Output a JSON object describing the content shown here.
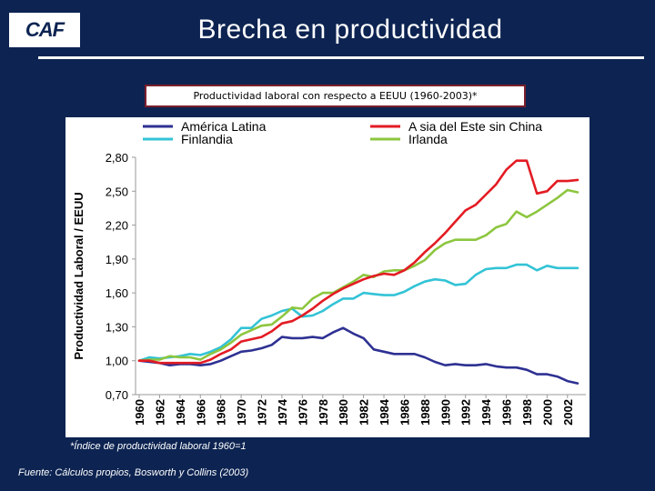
{
  "header": {
    "logo_text": "CAF",
    "title": "Brecha en productividad"
  },
  "footnote": "*Índice de productividad laboral 1960=1",
  "source": "Fuente: Cálculos propios, Bosworth y Collins (2003)",
  "colors": {
    "background": "#0d2452",
    "america_latina": "#2e3192",
    "finlandia": "#33c3d6",
    "asia_este": "#e31b23",
    "irlanda": "#8dc63f"
  },
  "chart_data": {
    "type": "line",
    "title": "Productividad laboral con respecto a EEUU (1960-2003)*",
    "xlabel": "",
    "ylabel": "Productividad Laboral / EEUU",
    "ylim": [
      0.7,
      2.8
    ],
    "yticks": [
      "0,70",
      "1,00",
      "1,30",
      "1,60",
      "1,90",
      "2,20",
      "2,50",
      "2,80"
    ],
    "ytick_values": [
      0.7,
      1.0,
      1.3,
      1.6,
      1.9,
      2.2,
      2.5,
      2.8
    ],
    "xticks": [
      "1960",
      "1962",
      "1964",
      "1966",
      "1968",
      "1970",
      "1972",
      "1974",
      "1976",
      "1978",
      "1980",
      "1982",
      "1984",
      "1986",
      "1988",
      "1990",
      "1992",
      "1994",
      "1996",
      "1998",
      "2000",
      "2002"
    ],
    "x": [
      1960,
      1961,
      1962,
      1963,
      1964,
      1965,
      1966,
      1967,
      1968,
      1969,
      1970,
      1971,
      1972,
      1973,
      1974,
      1975,
      1976,
      1977,
      1978,
      1979,
      1980,
      1981,
      1982,
      1983,
      1984,
      1985,
      1986,
      1987,
      1988,
      1989,
      1990,
      1991,
      1992,
      1993,
      1994,
      1995,
      1996,
      1997,
      1998,
      1999,
      2000,
      2001,
      2002,
      2003
    ],
    "grid": false,
    "legend_position": "top",
    "series": [
      {
        "name": "América Latina",
        "color_key": "america_latina",
        "values": [
          1.0,
          0.99,
          0.98,
          0.96,
          0.97,
          0.97,
          0.96,
          0.97,
          1.0,
          1.04,
          1.08,
          1.09,
          1.11,
          1.14,
          1.21,
          1.2,
          1.2,
          1.21,
          1.2,
          1.25,
          1.29,
          1.24,
          1.2,
          1.1,
          1.08,
          1.06,
          1.06,
          1.06,
          1.03,
          0.99,
          0.96,
          0.97,
          0.96,
          0.96,
          0.97,
          0.95,
          0.94,
          0.94,
          0.92,
          0.88,
          0.88,
          0.86,
          0.82,
          0.8
        ]
      },
      {
        "name": "A sia del Este sin China",
        "color_key": "asia_este",
        "values": [
          1.0,
          1.0,
          0.98,
          0.98,
          0.98,
          0.98,
          0.98,
          1.01,
          1.06,
          1.1,
          1.17,
          1.19,
          1.21,
          1.26,
          1.33,
          1.35,
          1.4,
          1.46,
          1.53,
          1.59,
          1.64,
          1.68,
          1.72,
          1.75,
          1.77,
          1.76,
          1.8,
          1.87,
          1.96,
          2.04,
          2.13,
          2.23,
          2.33,
          2.38,
          2.47,
          2.56,
          2.69,
          2.77,
          2.77,
          2.48,
          2.5,
          2.59,
          2.59,
          2.6
        ]
      },
      {
        "name": "Finlandia",
        "color_key": "finlandia",
        "values": [
          1.0,
          1.03,
          1.02,
          1.03,
          1.04,
          1.06,
          1.05,
          1.08,
          1.12,
          1.19,
          1.29,
          1.29,
          1.37,
          1.4,
          1.44,
          1.46,
          1.39,
          1.4,
          1.44,
          1.5,
          1.55,
          1.55,
          1.6,
          1.59,
          1.58,
          1.58,
          1.61,
          1.66,
          1.7,
          1.72,
          1.71,
          1.67,
          1.68,
          1.76,
          1.81,
          1.82,
          1.82,
          1.85,
          1.85,
          1.8,
          1.84,
          1.82,
          1.82,
          1.82
        ]
      },
      {
        "name": "Irlanda",
        "color_key": "irlanda",
        "values": [
          1.0,
          1.01,
          1.01,
          1.04,
          1.03,
          1.03,
          1.01,
          1.06,
          1.1,
          1.16,
          1.23,
          1.27,
          1.31,
          1.32,
          1.39,
          1.47,
          1.46,
          1.55,
          1.6,
          1.6,
          1.65,
          1.7,
          1.76,
          1.74,
          1.79,
          1.8,
          1.8,
          1.84,
          1.89,
          1.98,
          2.04,
          2.07,
          2.07,
          2.07,
          2.11,
          2.18,
          2.21,
          2.32,
          2.27,
          2.32,
          2.38,
          2.44,
          2.51,
          2.49
        ]
      }
    ]
  }
}
